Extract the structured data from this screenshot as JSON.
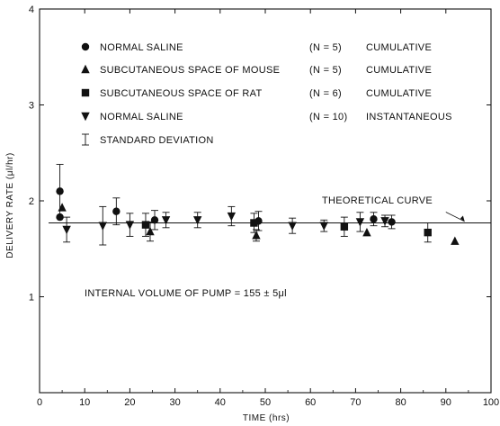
{
  "chart_data": {
    "type": "scatter",
    "title": "",
    "xlabel": "TIME (hrs)",
    "ylabel": "DELIVERY RATE (μl/hr)",
    "xlim": [
      0,
      100
    ],
    "ylim": [
      0,
      4
    ],
    "x_ticks": [
      "0",
      "10",
      "20",
      "30",
      "40",
      "50",
      "60",
      "70",
      "80",
      "90",
      "100"
    ],
    "y_ticks": [
      "1",
      "2",
      "3",
      "4"
    ],
    "grid": false,
    "legend_placement": "top-left",
    "legend": [
      {
        "marker": "circle",
        "label": "NORMAL SALINE",
        "n": "(N = 5)",
        "mode": "CUMULATIVE"
      },
      {
        "marker": "triangle-up",
        "label": "SUBCUTANEOUS SPACE OF MOUSE",
        "n": "(N = 5)",
        "mode": "CUMULATIVE"
      },
      {
        "marker": "square",
        "label": "SUBCUTANEOUS SPACE OF RAT",
        "n": "(N = 6)",
        "mode": "CUMULATIVE"
      },
      {
        "marker": "triangle-down",
        "label": "NORMAL SALINE",
        "n": "(N = 10)",
        "mode": "INSTANTANEOUS"
      },
      {
        "marker": "errorbar",
        "label": "STANDARD DEVIATION",
        "n": "",
        "mode": ""
      }
    ],
    "theoretical_curve": {
      "label": "THEORETICAL CURVE",
      "y": 1.77
    },
    "annotation": "INTERNAL VOLUME OF PUMP = 155 ± 5μl",
    "series": [
      {
        "marker": "circle",
        "points": [
          {
            "x": 4.5,
            "y": 2.1,
            "sd": 0.28
          },
          {
            "x": 4.5,
            "y": 1.83,
            "sd": 0
          },
          {
            "x": 17,
            "y": 1.89,
            "sd": 0.14
          },
          {
            "x": 25.5,
            "y": 1.8,
            "sd": 0.1
          },
          {
            "x": 48.5,
            "y": 1.79,
            "sd": 0.1
          },
          {
            "x": 74,
            "y": 1.81,
            "sd": 0.07
          },
          {
            "x": 78,
            "y": 1.78,
            "sd": 0.07
          }
        ]
      },
      {
        "marker": "triangle-up",
        "points": [
          {
            "x": 5,
            "y": 1.93,
            "sd": 0
          },
          {
            "x": 24.5,
            "y": 1.68,
            "sd": 0.1
          },
          {
            "x": 48,
            "y": 1.64,
            "sd": 0.06
          },
          {
            "x": 72.5,
            "y": 1.67,
            "sd": 0
          },
          {
            "x": 92,
            "y": 1.58,
            "sd": 0
          }
        ]
      },
      {
        "marker": "square",
        "points": [
          {
            "x": 23.5,
            "y": 1.75,
            "sd": 0.12
          },
          {
            "x": 47.5,
            "y": 1.77,
            "sd": 0.1
          },
          {
            "x": 67.5,
            "y": 1.73,
            "sd": 0.1
          },
          {
            "x": 86,
            "y": 1.67,
            "sd": 0.1
          }
        ]
      },
      {
        "marker": "triangle-down",
        "points": [
          {
            "x": 6,
            "y": 1.7,
            "sd": 0.13
          },
          {
            "x": 14,
            "y": 1.74,
            "sd": 0.2
          },
          {
            "x": 20,
            "y": 1.75,
            "sd": 0.12
          },
          {
            "x": 28,
            "y": 1.8,
            "sd": 0.08
          },
          {
            "x": 35,
            "y": 1.8,
            "sd": 0.08
          },
          {
            "x": 42.5,
            "y": 1.84,
            "sd": 0.1
          },
          {
            "x": 56,
            "y": 1.74,
            "sd": 0.08
          },
          {
            "x": 63,
            "y": 1.74,
            "sd": 0.06
          },
          {
            "x": 71,
            "y": 1.78,
            "sd": 0.1
          },
          {
            "x": 76.5,
            "y": 1.79,
            "sd": 0.06
          }
        ]
      }
    ]
  }
}
